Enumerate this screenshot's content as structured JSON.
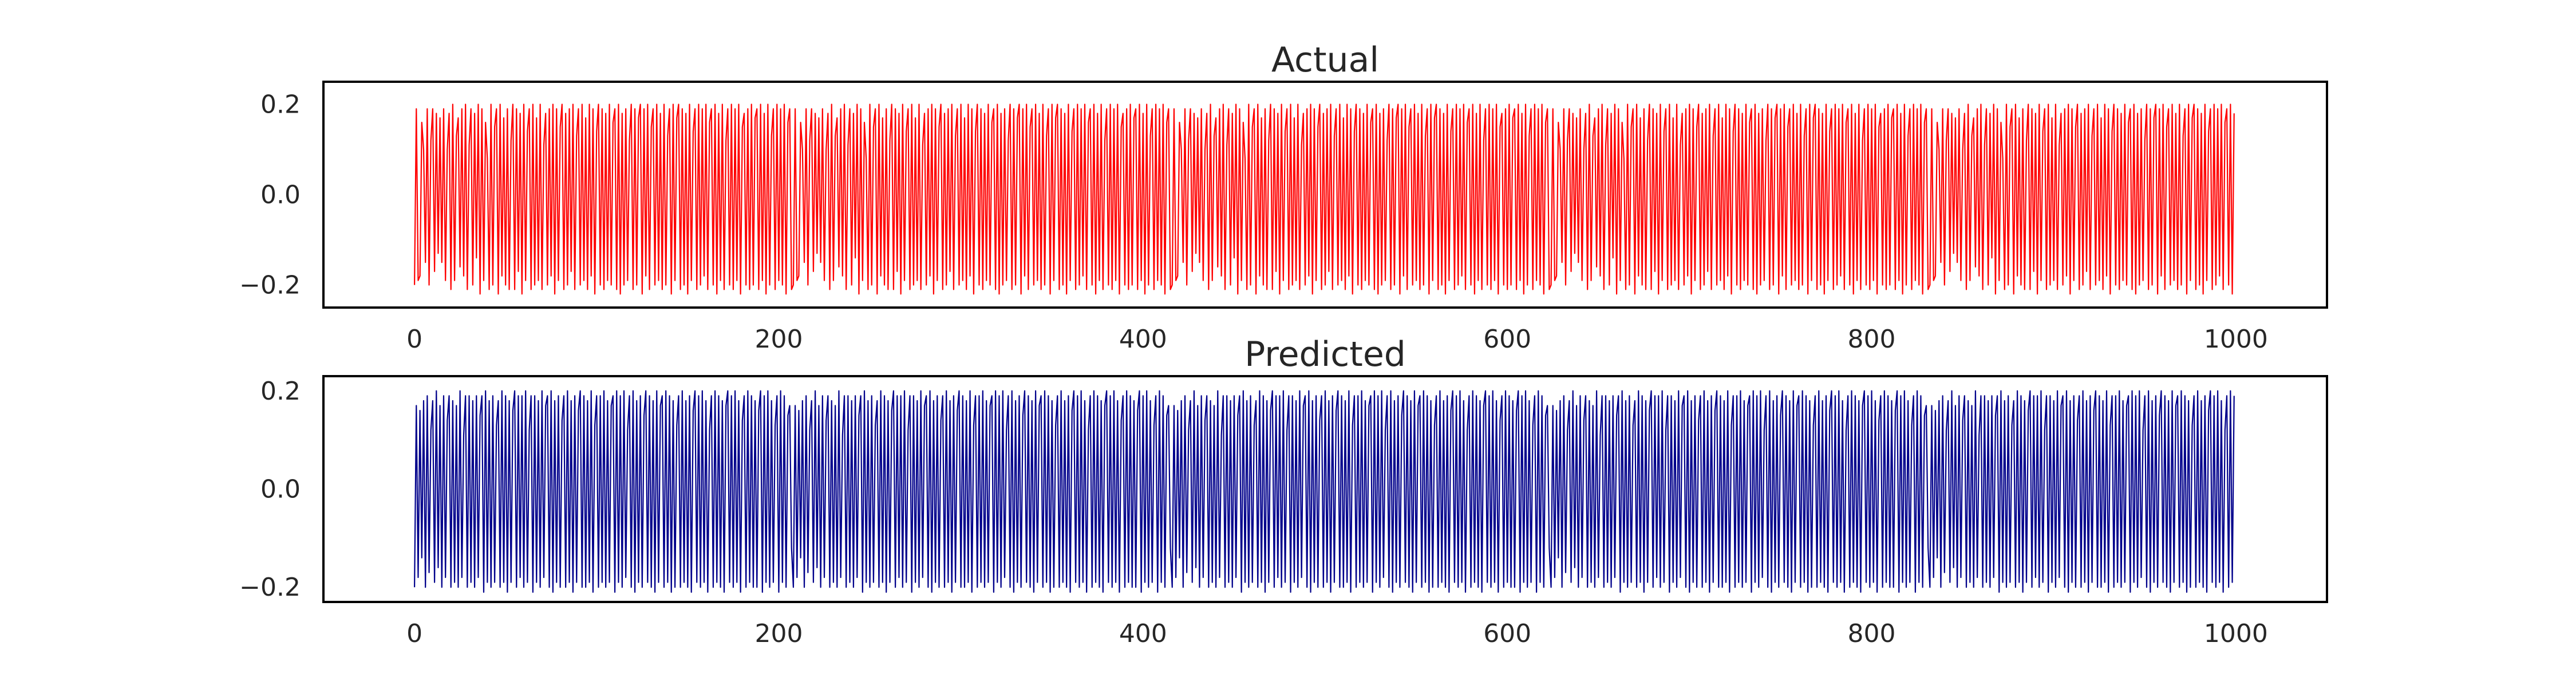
{
  "chart_data": [
    {
      "type": "line",
      "title": "Actual",
      "xlabel": "",
      "ylabel": "",
      "xlim": [
        -50,
        1050
      ],
      "ylim": [
        -0.25,
        0.25
      ],
      "xticks": [
        0,
        200,
        400,
        600,
        800,
        1000
      ],
      "xtick_labels": [
        "0",
        "200",
        "400",
        "600",
        "800",
        "1000"
      ],
      "yticks": [
        -0.2,
        0.0,
        0.2
      ],
      "ytick_labels": [
        "−0.2",
        "0.0",
        "0.2"
      ],
      "grid": false,
      "legend": "none",
      "color": "#ff0000",
      "x_range": [
        0,
        999
      ],
      "n_points": 1000,
      "series": [
        {
          "values": [
            -0.2,
            0.19,
            -0.19,
            -0.18,
            0.16,
            0.1,
            -0.15,
            0.19,
            -0.2,
            0.12,
            0.19,
            -0.17,
            0.18,
            -0.13,
            0.17,
            -0.15,
            0.19,
            -0.19,
            0.1,
            0.18,
            -0.21,
            0.2,
            -0.19,
            0.13,
            0.17,
            -0.16,
            0.19,
            -0.18,
            0.2,
            -0.21,
            0.11,
            0.19,
            -0.2,
            0.18,
            -0.14,
            0.2,
            -0.22,
            0.19,
            -0.19,
            0.16,
            0.08,
            -0.21,
            0.2,
            -0.2,
            0.15,
            0.19,
            -0.22,
            0.2,
            -0.18,
            0.17,
            -0.2,
            0.19,
            -0.21,
            0.12,
            0.2,
            -0.21,
            0.19,
            -0.17,
            0.18,
            -0.22,
            0.2,
            -0.19,
            0.14,
            0.19,
            -0.21,
            0.2,
            -0.2,
            0.17,
            -0.19,
            0.2,
            -0.21,
            0.11,
            0.18,
            -0.2,
            0.19,
            -0.18,
            0.2,
            -0.22,
            0.19,
            -0.19,
            0.15,
            0.2,
            -0.21,
            0.18,
            -0.2,
            0.19,
            -0.17,
            0.2,
            -0.21,
            0.13,
            0.19,
            -0.2,
            0.2,
            -0.19,
            0.17,
            -0.21,
            0.2,
            -0.18,
            0.19,
            -0.22,
            0.14,
            0.2,
            -0.2,
            0.19,
            -0.21,
            0.18,
            -0.19,
            0.2,
            -0.2,
            0.16,
            0.19,
            -0.21,
            0.2,
            -0.22,
            0.18,
            -0.2,
            0.19,
            -0.19,
            0.12,
            0.2,
            -0.21,
            0.19,
            -0.2,
            0.17,
            0.2,
            -0.22,
            0.19,
            -0.18,
            0.2,
            -0.21,
            0.15,
            0.19,
            -0.2,
            0.2,
            -0.19,
            0.18,
            -0.21,
            0.2,
            -0.2,
            0.13,
            0.19,
            -0.22,
            0.2,
            -0.19,
            0.17,
            0.2,
            -0.21,
            0.19,
            -0.2,
            0.18,
            -0.22,
            0.2,
            -0.19,
            0.14,
            0.19,
            -0.21,
            0.2,
            -0.2,
            0.19,
            -0.18,
            0.2,
            -0.21,
            0.16,
            0.19,
            -0.2,
            0.2,
            -0.22,
            0.18,
            -0.19,
            0.2,
            -0.21,
            0.12,
            0.19,
            -0.2,
            0.2,
            -0.21,
            0.19,
            -0.19,
            0.2,
            -0.22,
            0.15,
            0.18,
            -0.2,
            0.19,
            -0.21,
            0.2,
            -0.2,
            0.17,
            0.19,
            -0.21,
            0.2,
            -0.19,
            0.18,
            -0.22,
            0.2,
            -0.2,
            0.13,
            0.19,
            -0.21,
            0.2,
            -0.19,
            0.19,
            -0.2,
            0.2,
            -0.22,
            0.16,
            0.19,
            -0.21
          ]
        }
      ]
    },
    {
      "type": "line",
      "title": "Predicted",
      "xlabel": "",
      "ylabel": "",
      "xlim": [
        -50,
        1050
      ],
      "ylim": [
        -0.23,
        0.23
      ],
      "xticks": [
        0,
        200,
        400,
        600,
        800,
        1000
      ],
      "xtick_labels": [
        "0",
        "200",
        "400",
        "600",
        "800",
        "1000"
      ],
      "yticks": [
        -0.2,
        0.0,
        0.2
      ],
      "ytick_labels": [
        "−0.2",
        "0.0",
        "0.2"
      ],
      "grid": false,
      "legend": "none",
      "color": "#00008b",
      "x_range": [
        0,
        999
      ],
      "n_points": 1000,
      "series": [
        {
          "values": [
            -0.2,
            0.17,
            -0.18,
            0.16,
            -0.14,
            0.18,
            -0.2,
            0.19,
            -0.17,
            0.12,
            0.18,
            -0.19,
            0.2,
            -0.16,
            0.17,
            -0.2,
            0.19,
            -0.18,
            0.14,
            0.19,
            -0.2,
            0.18,
            -0.19,
            0.17,
            -0.2,
            0.2,
            -0.18,
            0.11,
            0.19,
            -0.2,
            0.19,
            -0.19,
            0.18,
            -0.2,
            0.19,
            -0.18,
            0.15,
            0.19,
            -0.21,
            0.2,
            -0.19,
            0.18,
            -0.2,
            0.19,
            -0.19,
            0.13,
            0.18,
            -0.2,
            0.2,
            -0.19,
            0.19,
            -0.21,
            0.18,
            -0.19,
            0.16,
            0.2,
            -0.2,
            0.19,
            -0.18,
            0.19,
            -0.2,
            0.2,
            -0.19,
            0.12,
            0.19,
            -0.21,
            0.19,
            -0.19,
            0.18,
            -0.2,
            0.2,
            -0.18,
            0.17,
            0.19,
            -0.2,
            0.2,
            -0.21,
            0.18,
            -0.19,
            0.19,
            -0.2,
            0.14,
            0.19,
            -0.2,
            0.2,
            -0.19,
            0.18,
            -0.21,
            0.19,
            -0.19,
            0.16,
            0.2,
            -0.2,
            0.19,
            -0.2,
            0.18,
            -0.19,
            0.2,
            -0.21,
            0.13,
            0.19,
            -0.2,
            0.19,
            -0.19,
            0.2,
            -0.2,
            0.18,
            -0.19,
            0.17,
            0.19,
            -0.21,
            0.2,
            -0.19,
            0.19,
            -0.2,
            0.2,
            -0.18,
            0.12,
            0.19,
            -0.2,
            0.2,
            -0.21,
            0.18,
            -0.19,
            0.19,
            -0.2,
            0.15,
            0.2,
            -0.19,
            0.19,
            -0.2,
            0.18,
            -0.21,
            0.2,
            -0.19,
            0.17,
            0.19,
            -0.2,
            0.2,
            -0.19,
            0.19,
            -0.21,
            0.18,
            -0.2,
            0.13,
            0.19,
            -0.2,
            0.2,
            -0.19,
            0.18,
            -0.2,
            0.19,
            -0.21,
            0.16,
            0.2,
            -0.19,
            0.19,
            -0.2,
            0.2,
            -0.19,
            0.18,
            -0.21,
            0.12,
            0.19,
            -0.2,
            0.2,
            -0.19,
            0.19,
            -0.2,
            0.18,
            -0.21,
            0.17,
            0.2,
            -0.19,
            0.19,
            -0.2,
            0.2,
            -0.19,
            0.18,
            -0.21,
            0.14,
            0.19,
            -0.2,
            0.2,
            -0.19,
            0.19,
            -0.2,
            0.18,
            -0.2,
            0.16,
            0.2,
            -0.21,
            0.19,
            -0.19,
            0.2,
            -0.2,
            0.18,
            -0.19,
            0.13,
            0.19,
            -0.21,
            0.2,
            -0.19,
            0.19,
            -0.2,
            0.15,
            0.17,
            -0.12
          ]
        }
      ]
    }
  ]
}
